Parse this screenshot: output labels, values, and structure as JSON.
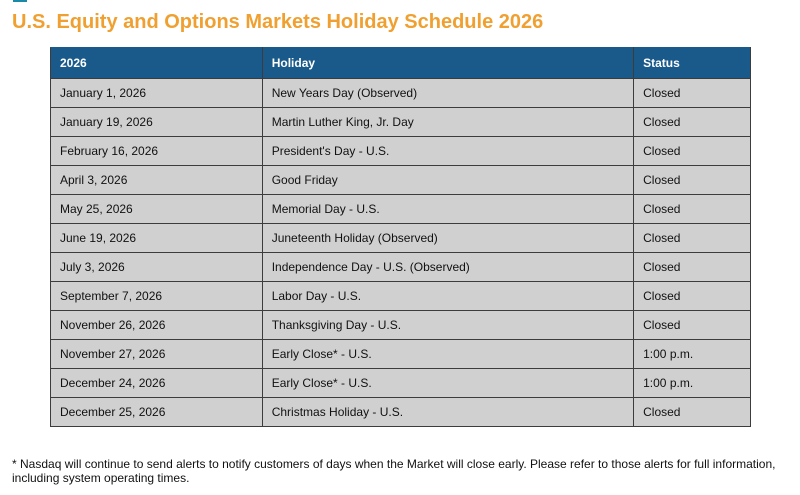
{
  "page": {
    "title": "U.S. Equity and Options Markets Holiday Schedule 2026",
    "title_color": "#f0a030",
    "header_color": "#1a5a8a",
    "row_color": "#d0d0d0"
  },
  "table": {
    "headers": [
      "2026",
      "Holiday",
      "Status"
    ],
    "rows": [
      {
        "date": "January 1, 2026",
        "holiday": "New Years Day (Observed)",
        "status": "Closed"
      },
      {
        "date": "January 19, 2026",
        "holiday": "Martin Luther King, Jr. Day",
        "status": "Closed"
      },
      {
        "date": "February 16, 2026",
        "holiday": "President's Day - U.S.",
        "status": "Closed"
      },
      {
        "date": "April 3, 2026",
        "holiday": "Good Friday",
        "status": "Closed"
      },
      {
        "date": "May 25, 2026",
        "holiday": "Memorial Day - U.S.",
        "status": "Closed"
      },
      {
        "date": "June 19, 2026",
        "holiday": "Juneteenth Holiday (Observed)",
        "status": "Closed"
      },
      {
        "date": "July 3, 2026",
        "holiday": "Independence Day - U.S. (Observed)",
        "status": "Closed"
      },
      {
        "date": "September 7, 2026",
        "holiday": "Labor Day - U.S.",
        "status": "Closed"
      },
      {
        "date": "November 26, 2026",
        "holiday": "Thanksgiving Day - U.S.",
        "status": "Closed"
      },
      {
        "date": "November 27, 2026",
        "holiday": "Early Close* - U.S.",
        "status": "1:00 p.m."
      },
      {
        "date": "December 24, 2026",
        "holiday": "Early Close* - U.S.",
        "status": "1:00 p.m."
      },
      {
        "date": "December 25, 2026",
        "holiday": "Christmas Holiday - U.S.",
        "status": "Closed"
      }
    ]
  },
  "footnote": "* Nasdaq will continue to send alerts to notify customers of days when the Market will close early. Please refer to those alerts for full information, including system operating times."
}
